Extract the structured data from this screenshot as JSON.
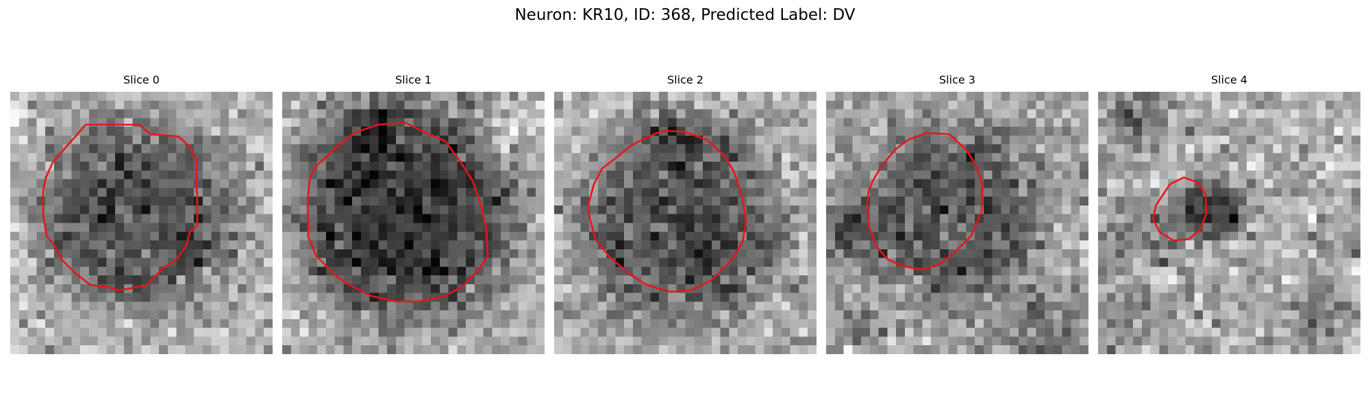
{
  "figure": {
    "title": "Neuron: KR10, ID: 368, Predicted Label: DV"
  },
  "contour_color": "#e8141b",
  "slices": [
    {
      "title": "Slice 0"
    },
    {
      "title": "Slice 1"
    },
    {
      "title": "Slice 2"
    },
    {
      "title": "Slice 3"
    },
    {
      "title": "Slice 4"
    }
  ]
}
